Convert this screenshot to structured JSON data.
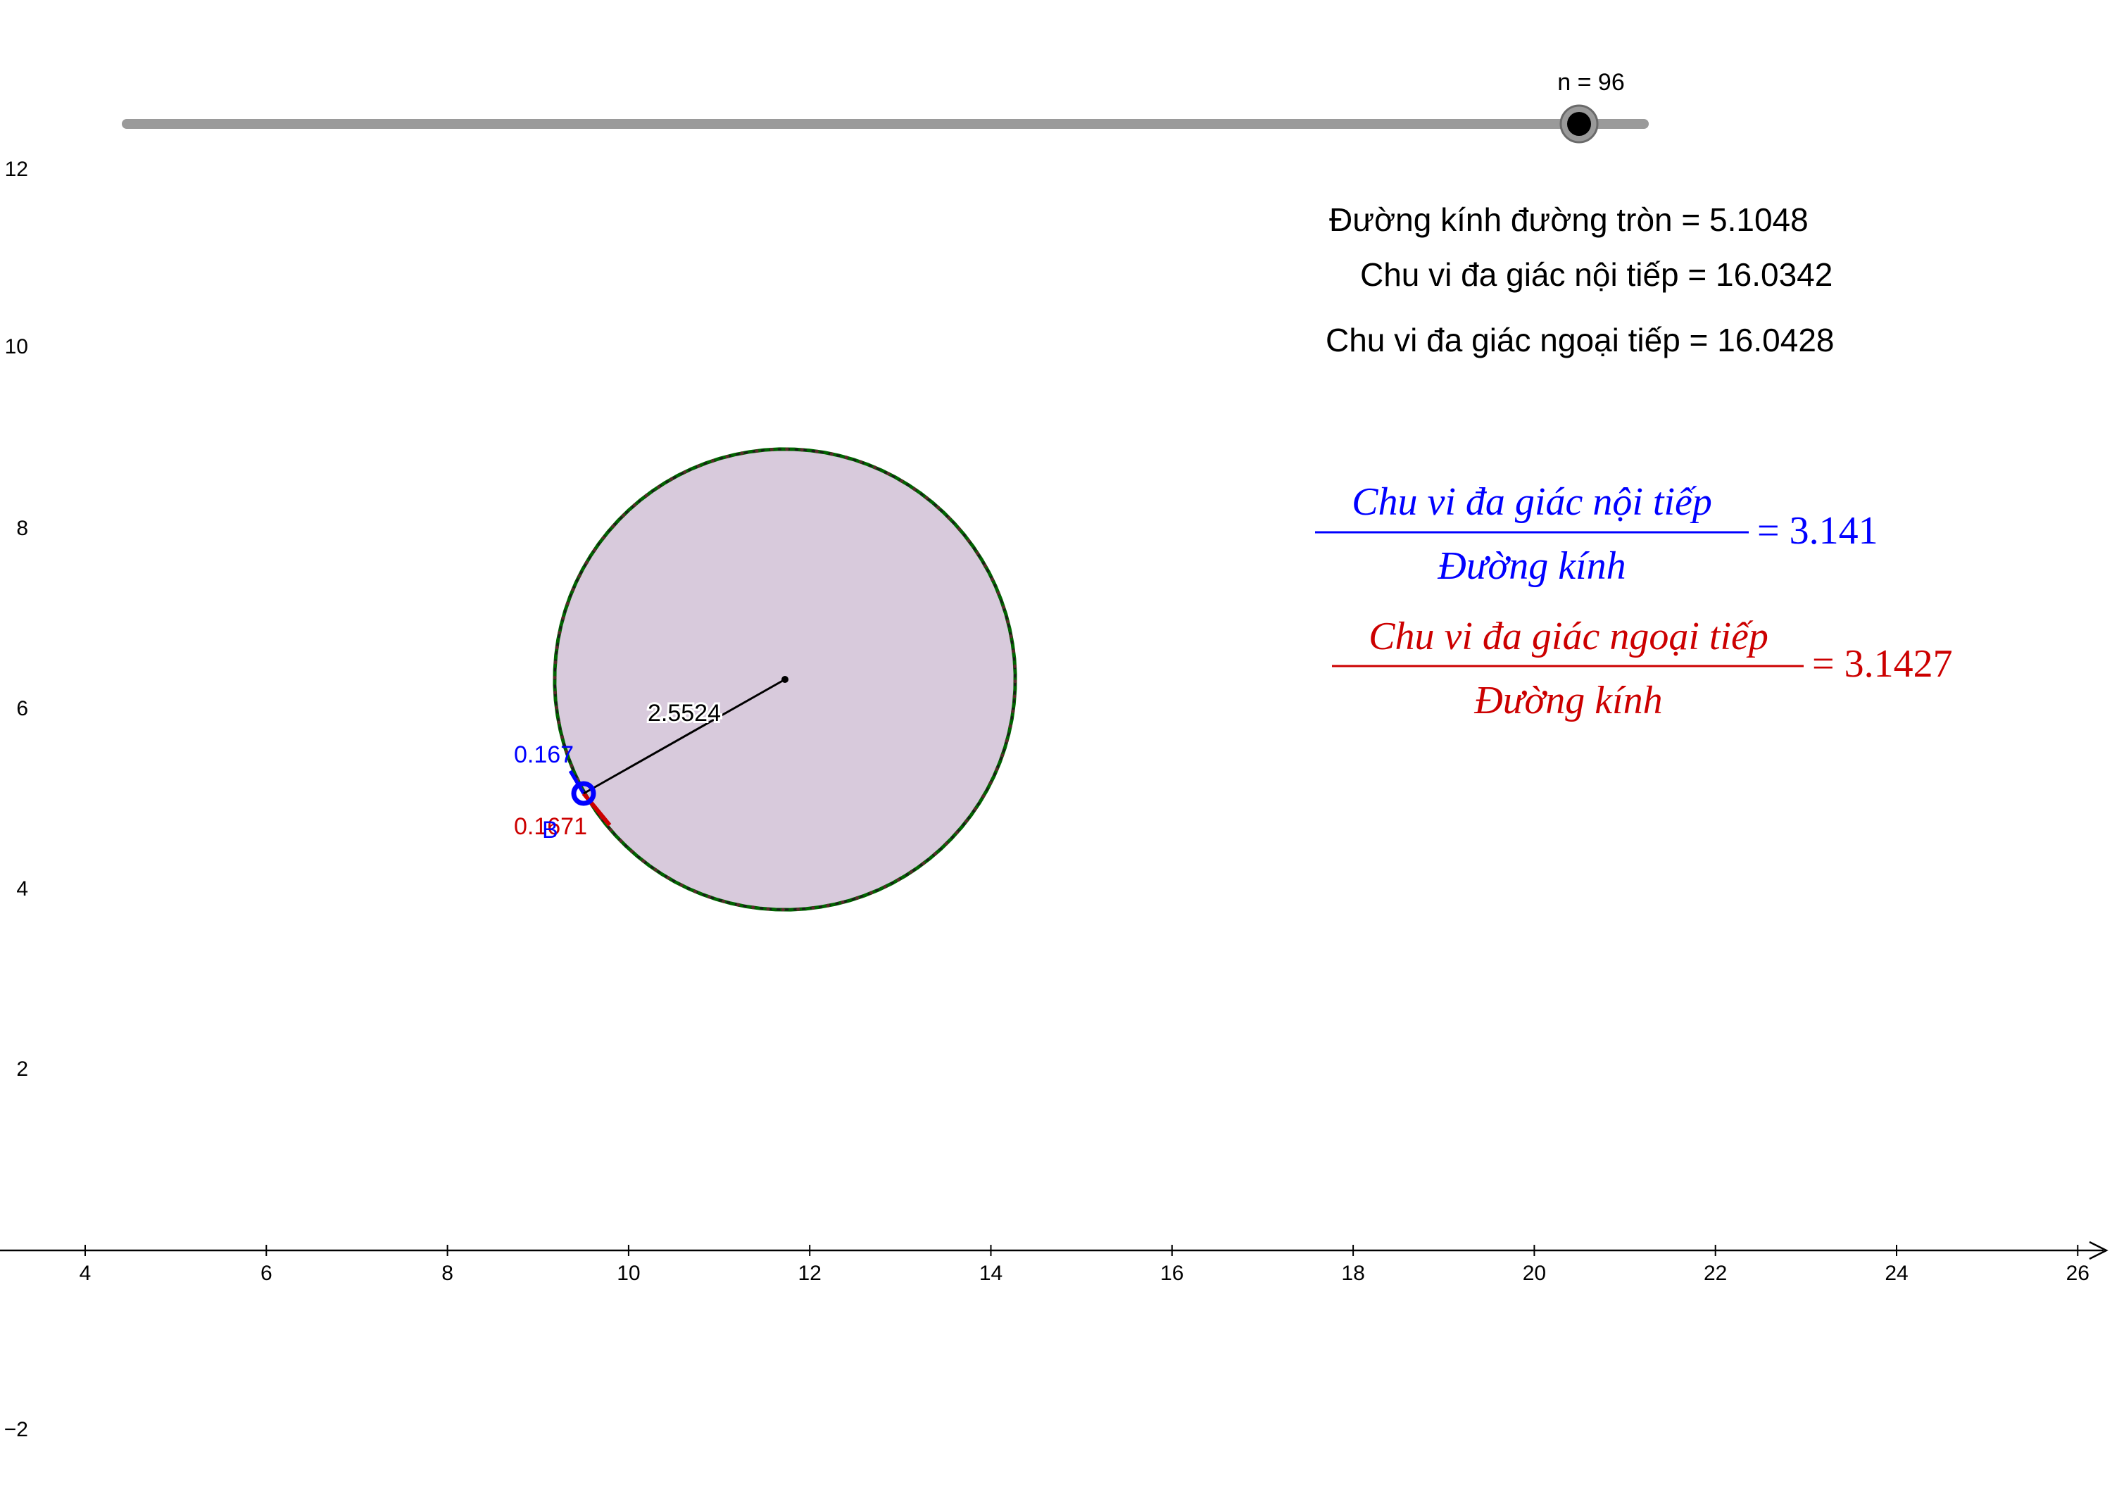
{
  "slider": {
    "label": "n = 96",
    "value": 96
  },
  "info": {
    "diameter": "Đường kính đường tròn = 5.1048",
    "inscribed_perimeter": "Chu vi đa giác nội tiếp = 16.0342",
    "circumscribed_perimeter": "Chu vi đa giác ngoại tiếp = 16.0428"
  },
  "formula_inscribed": {
    "numerator": "Chu vi đa giác nội tiếp",
    "denominator": "Đường kính",
    "result": "= 3.141",
    "color": "#0000ff"
  },
  "formula_circumscribed": {
    "numerator": "Chu vi đa giác ngoại tiếp",
    "denominator": "Đường kính",
    "result": "= 3.1427",
    "color": "#cc0000"
  },
  "geometry": {
    "radius_label": "2.5524",
    "inscribed_side_label": "0.167",
    "circumscribed_side_label": "0.1671",
    "point_label": "B",
    "circle_fill": "#d8cadc",
    "polygon_color": "#006400"
  },
  "axes": {
    "x_ticks": [
      "4",
      "6",
      "8",
      "10",
      "12",
      "14",
      "16",
      "18",
      "20",
      "22",
      "24",
      "26"
    ],
    "y_ticks": [
      "12",
      "10",
      "8",
      "6",
      "4",
      "2",
      "−2"
    ]
  }
}
